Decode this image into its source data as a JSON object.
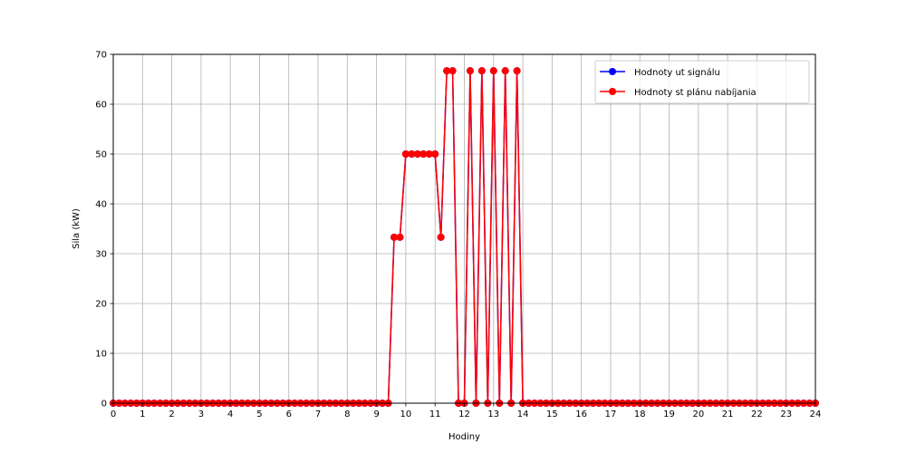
{
  "chart_data": {
    "type": "line",
    "xlabel": "Hodiny",
    "ylabel": "Sila (kW)",
    "xlim": [
      0,
      24
    ],
    "ylim": [
      0,
      70
    ],
    "xticks": [
      0,
      1,
      2,
      3,
      4,
      5,
      6,
      7,
      8,
      9,
      10,
      11,
      12,
      13,
      14,
      15,
      16,
      17,
      18,
      19,
      20,
      21,
      22,
      23,
      24
    ],
    "yticks": [
      0,
      10,
      20,
      30,
      40,
      50,
      60,
      70
    ],
    "grid": true,
    "legend_position": "top-right",
    "marker": "circle",
    "series": [
      {
        "name": "Hodnoty ut signálu",
        "color": "#0000ff",
        "points": [
          [
            0,
            0
          ],
          [
            0.2,
            0
          ],
          [
            0.4,
            0
          ],
          [
            0.6,
            0
          ],
          [
            0.8,
            0
          ],
          [
            1,
            0
          ],
          [
            1.2,
            0
          ],
          [
            1.4,
            0
          ],
          [
            1.6,
            0
          ],
          [
            1.8,
            0
          ],
          [
            2,
            0
          ],
          [
            2.2,
            0
          ],
          [
            2.4,
            0
          ],
          [
            2.6,
            0
          ],
          [
            2.8,
            0
          ],
          [
            3,
            0
          ],
          [
            3.2,
            0
          ],
          [
            3.4,
            0
          ],
          [
            3.6,
            0
          ],
          [
            3.8,
            0
          ],
          [
            4,
            0
          ],
          [
            4.2,
            0
          ],
          [
            4.4,
            0
          ],
          [
            4.6,
            0
          ],
          [
            4.8,
            0
          ],
          [
            5,
            0
          ],
          [
            5.2,
            0
          ],
          [
            5.4,
            0
          ],
          [
            5.6,
            0
          ],
          [
            5.8,
            0
          ],
          [
            6,
            0
          ],
          [
            6.2,
            0
          ],
          [
            6.4,
            0
          ],
          [
            6.6,
            0
          ],
          [
            6.8,
            0
          ],
          [
            7,
            0
          ],
          [
            7.2,
            0
          ],
          [
            7.4,
            0
          ],
          [
            7.6,
            0
          ],
          [
            7.8,
            0
          ],
          [
            8,
            0
          ],
          [
            8.2,
            0
          ],
          [
            8.4,
            0
          ],
          [
            8.6,
            0
          ],
          [
            8.8,
            0
          ],
          [
            9,
            0
          ],
          [
            9.2,
            0
          ],
          [
            9.4,
            0
          ],
          [
            9.6,
            33.3
          ],
          [
            9.8,
            33.3
          ],
          [
            10,
            50
          ],
          [
            10.2,
            50
          ],
          [
            10.4,
            50
          ],
          [
            10.6,
            50
          ],
          [
            10.8,
            50
          ],
          [
            11,
            50
          ],
          [
            11.2,
            33.3
          ],
          [
            11.4,
            66.7
          ],
          [
            11.6,
            66.7
          ],
          [
            11.8,
            0
          ],
          [
            12,
            0
          ],
          [
            12.2,
            66.7
          ],
          [
            12.4,
            0
          ],
          [
            12.6,
            66.7
          ],
          [
            12.8,
            0
          ],
          [
            13,
            66.7
          ],
          [
            13.2,
            0
          ],
          [
            13.4,
            66.7
          ],
          [
            13.6,
            0
          ],
          [
            13.8,
            66.7
          ],
          [
            14,
            0
          ],
          [
            14.2,
            0
          ],
          [
            14.4,
            0
          ],
          [
            14.6,
            0
          ],
          [
            14.8,
            0
          ],
          [
            15,
            0
          ],
          [
            15.2,
            0
          ],
          [
            15.4,
            0
          ],
          [
            15.6,
            0
          ],
          [
            15.8,
            0
          ],
          [
            16,
            0
          ],
          [
            16.2,
            0
          ],
          [
            16.4,
            0
          ],
          [
            16.6,
            0
          ],
          [
            16.8,
            0
          ],
          [
            17,
            0
          ],
          [
            17.2,
            0
          ],
          [
            17.4,
            0
          ],
          [
            17.6,
            0
          ],
          [
            17.8,
            0
          ],
          [
            18,
            0
          ],
          [
            18.2,
            0
          ],
          [
            18.4,
            0
          ],
          [
            18.6,
            0
          ],
          [
            18.8,
            0
          ],
          [
            19,
            0
          ],
          [
            19.2,
            0
          ],
          [
            19.4,
            0
          ],
          [
            19.6,
            0
          ],
          [
            19.8,
            0
          ],
          [
            20,
            0
          ],
          [
            20.2,
            0
          ],
          [
            20.4,
            0
          ],
          [
            20.6,
            0
          ],
          [
            20.8,
            0
          ],
          [
            21,
            0
          ],
          [
            21.2,
            0
          ],
          [
            21.4,
            0
          ],
          [
            21.6,
            0
          ],
          [
            21.8,
            0
          ],
          [
            22,
            0
          ],
          [
            22.2,
            0
          ],
          [
            22.4,
            0
          ],
          [
            22.6,
            0
          ],
          [
            22.8,
            0
          ],
          [
            23,
            0
          ],
          [
            23.2,
            0
          ],
          [
            23.4,
            0
          ],
          [
            23.6,
            0
          ],
          [
            23.8,
            0
          ],
          [
            24,
            0
          ]
        ]
      },
      {
        "name": "Hodnoty st plánu nabíjania",
        "color": "#ff0000",
        "points": [
          [
            0,
            0
          ],
          [
            0.2,
            0
          ],
          [
            0.4,
            0
          ],
          [
            0.6,
            0
          ],
          [
            0.8,
            0
          ],
          [
            1,
            0
          ],
          [
            1.2,
            0
          ],
          [
            1.4,
            0
          ],
          [
            1.6,
            0
          ],
          [
            1.8,
            0
          ],
          [
            2,
            0
          ],
          [
            2.2,
            0
          ],
          [
            2.4,
            0
          ],
          [
            2.6,
            0
          ],
          [
            2.8,
            0
          ],
          [
            3,
            0
          ],
          [
            3.2,
            0
          ],
          [
            3.4,
            0
          ],
          [
            3.6,
            0
          ],
          [
            3.8,
            0
          ],
          [
            4,
            0
          ],
          [
            4.2,
            0
          ],
          [
            4.4,
            0
          ],
          [
            4.6,
            0
          ],
          [
            4.8,
            0
          ],
          [
            5,
            0
          ],
          [
            5.2,
            0
          ],
          [
            5.4,
            0
          ],
          [
            5.6,
            0
          ],
          [
            5.8,
            0
          ],
          [
            6,
            0
          ],
          [
            6.2,
            0
          ],
          [
            6.4,
            0
          ],
          [
            6.6,
            0
          ],
          [
            6.8,
            0
          ],
          [
            7,
            0
          ],
          [
            7.2,
            0
          ],
          [
            7.4,
            0
          ],
          [
            7.6,
            0
          ],
          [
            7.8,
            0
          ],
          [
            8,
            0
          ],
          [
            8.2,
            0
          ],
          [
            8.4,
            0
          ],
          [
            8.6,
            0
          ],
          [
            8.8,
            0
          ],
          [
            9,
            0
          ],
          [
            9.2,
            0
          ],
          [
            9.4,
            0
          ],
          [
            9.6,
            33.3
          ],
          [
            9.8,
            33.3
          ],
          [
            10,
            50
          ],
          [
            10.2,
            50
          ],
          [
            10.4,
            50
          ],
          [
            10.6,
            50
          ],
          [
            10.8,
            50
          ],
          [
            11,
            50
          ],
          [
            11.2,
            33.3
          ],
          [
            11.4,
            66.7
          ],
          [
            11.6,
            66.7
          ],
          [
            11.8,
            0
          ],
          [
            12,
            0
          ],
          [
            12.2,
            66.7
          ],
          [
            12.4,
            0
          ],
          [
            12.6,
            66.7
          ],
          [
            12.8,
            0
          ],
          [
            13,
            66.7
          ],
          [
            13.2,
            0
          ],
          [
            13.4,
            66.7
          ],
          [
            13.6,
            0
          ],
          [
            13.8,
            66.7
          ],
          [
            14,
            0
          ],
          [
            14.2,
            0
          ],
          [
            14.4,
            0
          ],
          [
            14.6,
            0
          ],
          [
            14.8,
            0
          ],
          [
            15,
            0
          ],
          [
            15.2,
            0
          ],
          [
            15.4,
            0
          ],
          [
            15.6,
            0
          ],
          [
            15.8,
            0
          ],
          [
            16,
            0
          ],
          [
            16.2,
            0
          ],
          [
            16.4,
            0
          ],
          [
            16.6,
            0
          ],
          [
            16.8,
            0
          ],
          [
            17,
            0
          ],
          [
            17.2,
            0
          ],
          [
            17.4,
            0
          ],
          [
            17.6,
            0
          ],
          [
            17.8,
            0
          ],
          [
            18,
            0
          ],
          [
            18.2,
            0
          ],
          [
            18.4,
            0
          ],
          [
            18.6,
            0
          ],
          [
            18.8,
            0
          ],
          [
            19,
            0
          ],
          [
            19.2,
            0
          ],
          [
            19.4,
            0
          ],
          [
            19.6,
            0
          ],
          [
            19.8,
            0
          ],
          [
            20,
            0
          ],
          [
            20.2,
            0
          ],
          [
            20.4,
            0
          ],
          [
            20.6,
            0
          ],
          [
            20.8,
            0
          ],
          [
            21,
            0
          ],
          [
            21.2,
            0
          ],
          [
            21.4,
            0
          ],
          [
            21.6,
            0
          ],
          [
            21.8,
            0
          ],
          [
            22,
            0
          ],
          [
            22.2,
            0
          ],
          [
            22.4,
            0
          ],
          [
            22.6,
            0
          ],
          [
            22.8,
            0
          ],
          [
            23,
            0
          ],
          [
            23.2,
            0
          ],
          [
            23.4,
            0
          ],
          [
            23.6,
            0
          ],
          [
            23.8,
            0
          ],
          [
            24,
            0
          ]
        ]
      }
    ]
  }
}
